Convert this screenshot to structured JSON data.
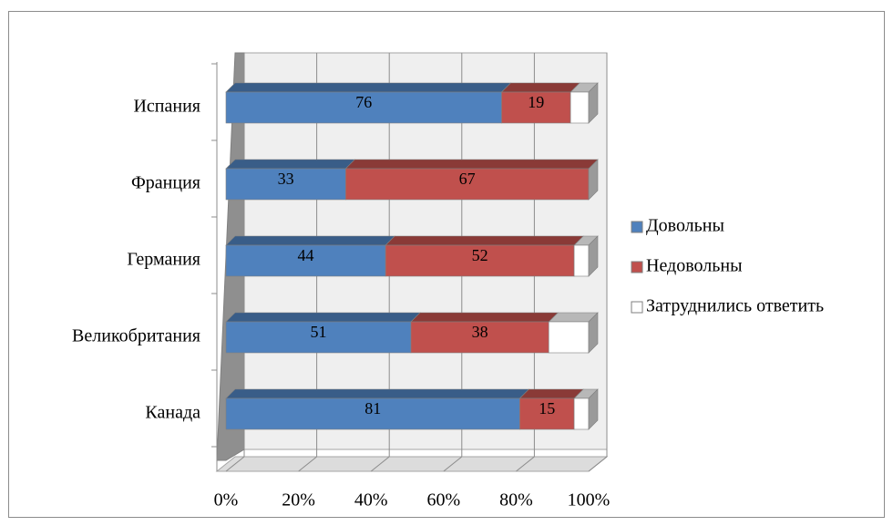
{
  "chart_data": {
    "type": "bar",
    "orientation": "horizontal",
    "stacked": "percent",
    "categories": [
      "Испания",
      "Франция",
      "Германия",
      "Великобритания",
      "Канада"
    ],
    "series": [
      {
        "name": "Довольны",
        "values": [
          76,
          33,
          44,
          51,
          81
        ],
        "color": "#4f81bd"
      },
      {
        "name": "Недовольны",
        "values": [
          19,
          67,
          52,
          38,
          15
        ],
        "color": "#c0504d"
      },
      {
        "name": "Затруднились  ответить",
        "values": [
          5,
          0,
          4,
          11,
          4
        ],
        "color": "#ffffff"
      }
    ],
    "data_labels_shown_for": [
      "Довольны",
      "Недовольны"
    ],
    "x_ticks": [
      "0%",
      "20%",
      "40%",
      "60%",
      "80%",
      "100%"
    ],
    "xlim": [
      0,
      100
    ],
    "grid": true,
    "legend_position": "right",
    "three_d": true
  }
}
